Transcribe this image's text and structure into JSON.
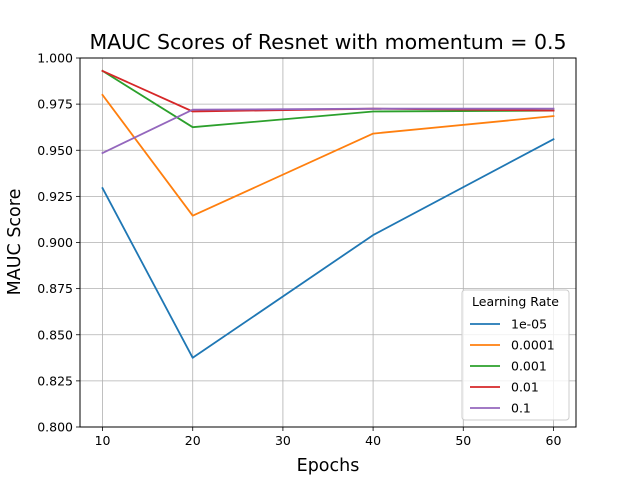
{
  "chart_data": {
    "type": "line",
    "title": "MAUC Scores of Resnet with momentum = 0.5",
    "xlabel": "Epochs",
    "ylabel": "MAUC Score",
    "x": [
      10,
      20,
      40,
      60
    ],
    "xlim": [
      7.5,
      62.5
    ],
    "ylim": [
      0.8,
      1.0
    ],
    "xticks": [
      10,
      20,
      30,
      40,
      50,
      60
    ],
    "yticks": [
      0.8,
      0.825,
      0.85,
      0.875,
      0.9,
      0.925,
      0.95,
      0.975,
      1.0
    ],
    "xtick_labels": [
      "10",
      "20",
      "30",
      "40",
      "50",
      "60"
    ],
    "ytick_labels": [
      "0.800",
      "0.825",
      "0.850",
      "0.875",
      "0.900",
      "0.925",
      "0.950",
      "0.975",
      "1.000"
    ],
    "grid": true,
    "legend": {
      "title": "Learning Rate",
      "placement": "lower-right"
    },
    "series": [
      {
        "name": "1e-05",
        "color": "#1f77b4",
        "values": [
          0.9295,
          0.8375,
          0.904,
          0.956
        ]
      },
      {
        "name": "0.0001",
        "color": "#ff7f0e",
        "values": [
          0.98,
          0.9145,
          0.959,
          0.9685
        ]
      },
      {
        "name": "0.001",
        "color": "#2ca02c",
        "values": [
          0.993,
          0.9625,
          0.971,
          0.9715
        ]
      },
      {
        "name": "0.01",
        "color": "#d62728",
        "values": [
          0.993,
          0.971,
          0.9725,
          0.9715
        ]
      },
      {
        "name": "0.1",
        "color": "#9467bd",
        "values": [
          0.9485,
          0.972,
          0.9725,
          0.9725
        ]
      }
    ]
  }
}
